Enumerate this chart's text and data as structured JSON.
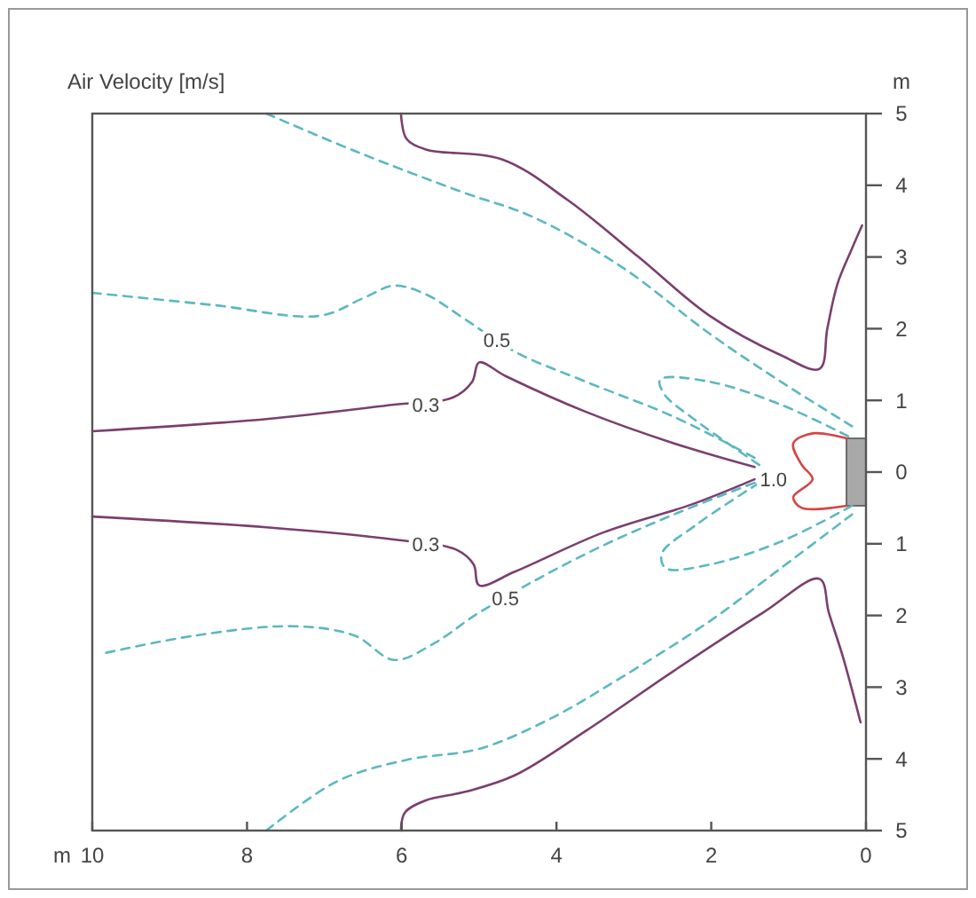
{
  "chart_data": {
    "type": "line",
    "title": "Air Velocity [m/s]",
    "xlabel": "m",
    "ylabel": "m",
    "xlim": [
      10,
      0
    ],
    "xticks": [
      10,
      8,
      6,
      4,
      2,
      0
    ],
    "ylim": [
      -5,
      5
    ],
    "yticks": [
      {
        "value": -5,
        "label": "5"
      },
      {
        "value": -4,
        "label": "4"
      },
      {
        "value": -3,
        "label": "3"
      },
      {
        "value": -2,
        "label": "2"
      },
      {
        "value": -1,
        "label": "1"
      },
      0,
      1,
      2,
      3,
      4,
      5
    ],
    "grid": false,
    "marker": "none",
    "series": [
      {
        "color": "#7b3f6e",
        "line_style": "solid",
        "x": [
          6.01,
          5.94,
          5.69,
          4.7,
          3.85,
          2.94,
          2.02,
          1.1,
          0.6,
          0.5,
          0.37,
          0.18,
          0.05
        ],
        "values": [
          5,
          4.65,
          4.5,
          4.36,
          3.79,
          3.0,
          2.18,
          1.63,
          1.44,
          2.0,
          2.62,
          3.12,
          3.44
        ]
      },
      {
        "color": "#7b3f6e",
        "line_style": "solid",
        "x": [
          6.01,
          5.96,
          5.69,
          5.18,
          4.54,
          3.62,
          2.48,
          1.33,
          0.6,
          0.48,
          0.3,
          0.07
        ],
        "values": [
          -5,
          -4.75,
          -4.58,
          -4.46,
          -4.23,
          -3.61,
          -2.77,
          -1.96,
          -1.49,
          -1.96,
          -2.57,
          -3.49
        ]
      },
      {
        "color": "#7b3f6e",
        "line_style": "solid",
        "x": [
          10,
          7.75,
          6.1,
          5.34,
          5.09,
          5.0,
          4.66,
          3.62,
          2.48,
          1.44
        ],
        "values": [
          0.57,
          0.74,
          0.94,
          1.04,
          1.26,
          1.53,
          1.34,
          0.84,
          0.4,
          0.07
        ]
      },
      {
        "color": "#7b3f6e",
        "line_style": "solid",
        "x": [
          10,
          7.75,
          6.1,
          5.28,
          5.07,
          5.0,
          4.54,
          3.39,
          2.25,
          1.44
        ],
        "values": [
          -0.62,
          -0.77,
          -0.94,
          -1.09,
          -1.29,
          -1.58,
          -1.39,
          -0.84,
          -0.45,
          -0.1
        ]
      },
      {
        "color": "#5bb8c0",
        "line_style": "dashed",
        "x": [
          7.75,
          6.61,
          5.23,
          4.31,
          3.17,
          2.02,
          1.1,
          0.18
        ],
        "values": [
          5,
          4.48,
          3.91,
          3.56,
          2.87,
          1.93,
          1.26,
          0.64
        ]
      },
      {
        "color": "#5bb8c0",
        "line_style": "dashed",
        "x": [
          10,
          8.44,
          7.06,
          6.49,
          6.1,
          5.69,
          5.18,
          4.54,
          3.62,
          2.48,
          1.44
        ],
        "values": [
          2.5,
          2.33,
          2.18,
          2.43,
          2.6,
          2.48,
          2.13,
          1.68,
          1.26,
          0.77,
          0.2
        ]
      },
      {
        "color": "#5bb8c0",
        "line_style": "dashed",
        "x": [
          9.82,
          8.67,
          7.41,
          6.61,
          6.1,
          5.57,
          5.0,
          3.62,
          2.48,
          1.44
        ],
        "values": [
          -2.52,
          -2.28,
          -2.15,
          -2.28,
          -2.62,
          -2.38,
          -1.96,
          -1.14,
          -0.59,
          -0.15
        ]
      },
      {
        "color": "#5bb8c0",
        "line_style": "dashed",
        "x": [
          7.75,
          6.83,
          5.92,
          5.0,
          4.08,
          3.17,
          2.02,
          1.1,
          0.18
        ],
        "values": [
          -5,
          -4.31,
          -4.01,
          -3.86,
          -3.44,
          -2.87,
          -2.08,
          -1.34,
          -0.59
        ]
      },
      {
        "color": "#5bb8c0",
        "line_style": "dashed",
        "x": [
          0.23,
          1.1,
          2.02,
          2.66,
          2.61,
          2.2,
          1.38
        ],
        "values": [
          0.5,
          0.94,
          1.26,
          1.29,
          1.09,
          0.72,
          0.1
        ]
      },
      {
        "color": "#5bb8c0",
        "line_style": "dashed",
        "x": [
          0.18,
          1.1,
          2.02,
          2.59,
          2.64,
          2.2,
          1.38
        ],
        "values": [
          -0.47,
          -0.97,
          -1.29,
          -1.34,
          -1.14,
          -0.74,
          -0.15
        ]
      },
      {
        "color": "#d64545",
        "line_style": "solid",
        "x": [
          0.25,
          0.69,
          0.94,
          0.83,
          0.69,
          0.94,
          0.83,
          0.25
        ],
        "values": [
          0.47,
          0.54,
          0.4,
          0.1,
          -0.1,
          -0.35,
          -0.5,
          -0.47
        ]
      }
    ],
    "annotations": [
      {
        "text": "0.3",
        "x": 5.69,
        "y": 0.94
      },
      {
        "text": "0.3",
        "x": 5.69,
        "y": -1.0
      },
      {
        "text": "0.5",
        "x": 4.77,
        "y": 1.84
      },
      {
        "text": "0.5",
        "x": 4.66,
        "y": -1.76
      },
      {
        "text": "1.0",
        "x": 1.44,
        "y": -0.1
      }
    ]
  }
}
